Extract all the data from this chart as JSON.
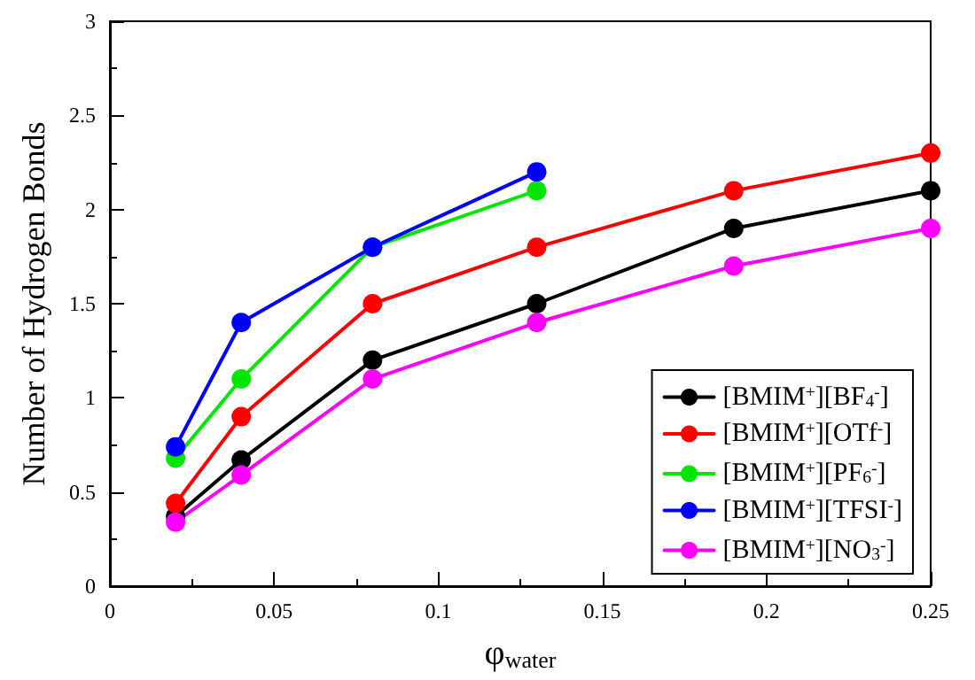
{
  "chart_data": {
    "type": "line",
    "xlabel": "φ$_{water}$",
    "ylabel": "Number of Hydrogen Bonds",
    "x": [
      0.02,
      0.04,
      0.08,
      0.13,
      0.19,
      0.25
    ],
    "series": [
      {
        "name": "[BMIM$^{+}$][BF$_{4}$$^{-}$]",
        "color": "#000000",
        "values": [
          0.37,
          0.67,
          1.2,
          1.5,
          1.9,
          2.1
        ]
      },
      {
        "name": "[BMIM$^{+}$][OTf$^{-}$]",
        "color": "#ff0000",
        "values": [
          0.44,
          0.9,
          1.5,
          1.8,
          2.1,
          2.3
        ]
      },
      {
        "name": "[BMIM$^{+}$][PF$_{6}$$^{-}$]",
        "color": "#00e600",
        "values": [
          0.68,
          1.1,
          1.8,
          2.1,
          null,
          null
        ]
      },
      {
        "name": "[BMIM$^{+}$][TFSI$^{-}$]",
        "color": "#0000ff",
        "values": [
          0.74,
          1.4,
          1.8,
          2.2,
          null,
          null
        ]
      },
      {
        "name": "[BMIM$^{+}$][NO$_{3}$$^{-}$]",
        "color": "#ff00ff",
        "values": [
          0.34,
          0.59,
          1.1,
          1.4,
          1.7,
          1.9
        ]
      }
    ],
    "xlim": [
      0,
      0.25
    ],
    "xticks": [
      0,
      0.05,
      0.1,
      0.15,
      0.2,
      0.25
    ],
    "ylim": [
      0,
      3
    ],
    "yticks": [
      0,
      0.5,
      1,
      1.5,
      2,
      2.5,
      3
    ],
    "grid": false,
    "legend": "bottom right",
    "marker": "circle",
    "line_style": "solid"
  }
}
